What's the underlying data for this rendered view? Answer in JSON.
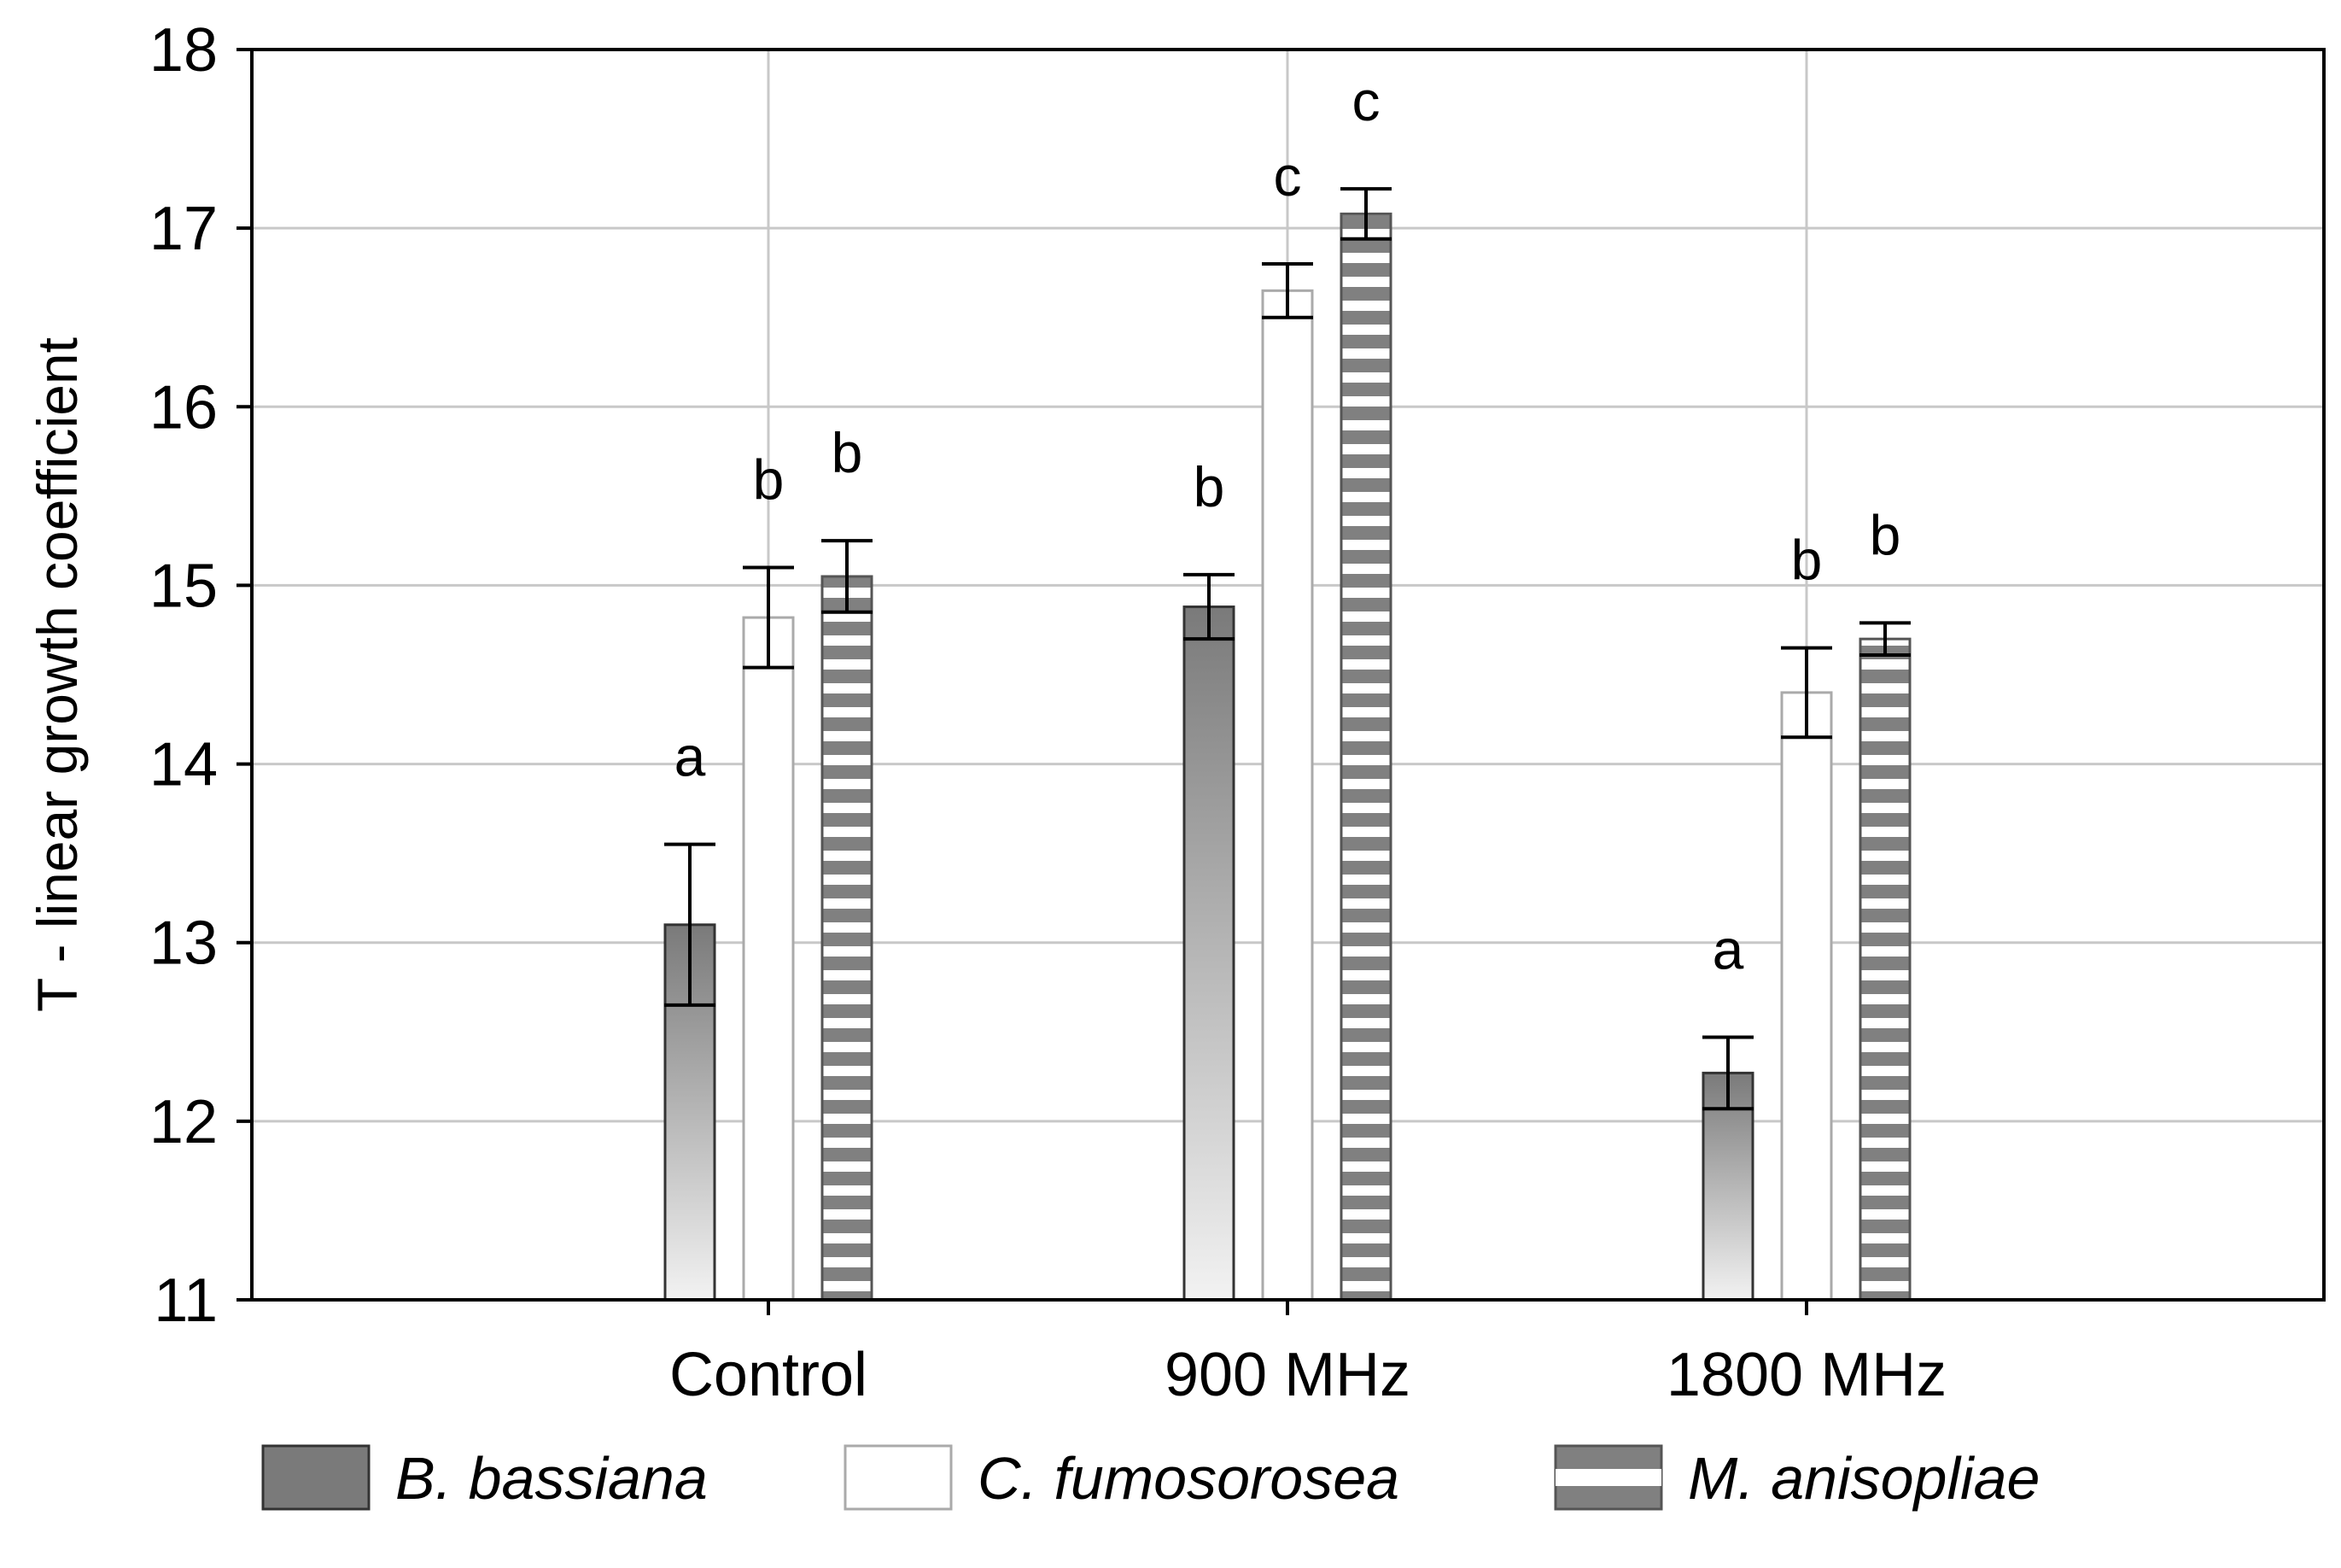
{
  "chart_data": {
    "type": "bar",
    "title": "",
    "xlabel": "",
    "ylabel": "T - linear growth coefficient",
    "ylim": [
      11,
      18
    ],
    "yticks": [
      11,
      12,
      13,
      14,
      15,
      16,
      17,
      18
    ],
    "grid": true,
    "legend_position": "bottom",
    "categories": [
      "Control",
      "900 MHz",
      "1800 MHz"
    ],
    "series": [
      {
        "name": "B. bassiana",
        "pattern": "gradient-gray",
        "values": [
          13.1,
          14.88,
          12.27
        ],
        "errors": [
          0.45,
          0.18,
          0.2
        ],
        "significance": [
          "a",
          "b",
          "a"
        ]
      },
      {
        "name": "C. fumosorosea",
        "pattern": "white",
        "values": [
          14.82,
          16.65,
          14.4
        ],
        "errors": [
          0.28,
          0.15,
          0.25
        ],
        "significance": [
          "b",
          "c",
          "b"
        ]
      },
      {
        "name": "M. anisopliae",
        "pattern": "gray-white-stripes",
        "values": [
          15.05,
          17.08,
          14.7
        ],
        "errors": [
          0.2,
          0.14,
          0.09
        ],
        "significance": [
          "b",
          "c",
          "b"
        ]
      }
    ],
    "colors": {
      "bar_dark": "#7a7a7a",
      "bar_light": "#f2f2f2",
      "stripe": "#808080",
      "grid": "#c8c8c8",
      "axis": "#000000"
    }
  }
}
